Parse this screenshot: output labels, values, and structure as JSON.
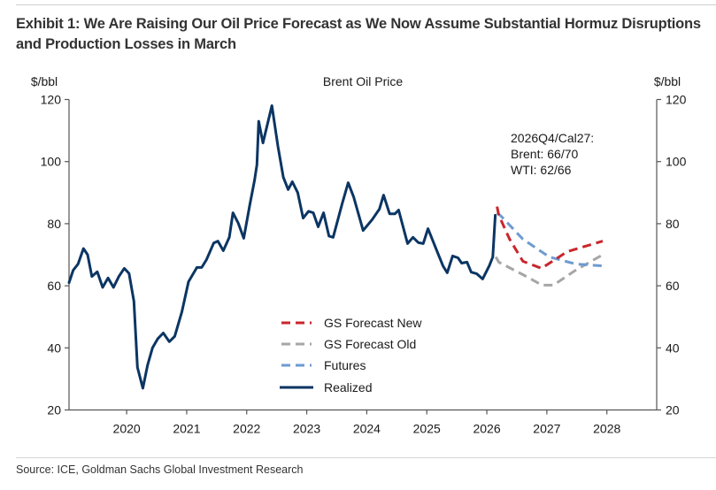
{
  "exhibit": {
    "title": "Exhibit 1: We Are Raising Our Oil Price Forecast as We Now Assume Substantial Hormuz Disruptions and Production Losses in March",
    "source": "Source: ICE, Goldman Sachs Global Investment Research"
  },
  "chart_data": {
    "type": "line",
    "title": "Brent Oil Price",
    "xlabel": "",
    "ylabel": "$/bbl",
    "ylabel_right": "$/bbl",
    "xlim": [
      2019.04,
      2028.83
    ],
    "ylim": [
      20,
      120
    ],
    "x_ticks": [
      2020,
      2021,
      2022,
      2023,
      2024,
      2025,
      2026,
      2027,
      2028
    ],
    "x_tick_labels": [
      "2020",
      "2021",
      "2022",
      "2023",
      "2024",
      "2025",
      "2026",
      "2027",
      "2028"
    ],
    "y_ticks": [
      20,
      40,
      60,
      80,
      100,
      120
    ],
    "y_tick_labels": [
      "20",
      "40",
      "60",
      "80",
      "100",
      "120"
    ],
    "grid": false,
    "legend_position": "bottom-center",
    "annotation": [
      "2026Q4/Cal27:",
      "Brent: 66/70",
      "WTI: 62/66"
    ],
    "series": [
      {
        "name": "GS Forecast New",
        "style": "dashed",
        "color": "#c8262c",
        "x": [
          2026.17,
          2026.2,
          2026.38,
          2026.6,
          2026.91,
          2027.34,
          2027.93
        ],
        "values": [
          85.5,
          82.7,
          75,
          67.9,
          65.6,
          71,
          74.4
        ]
      },
      {
        "name": "GS Forecast Old",
        "style": "dashed",
        "color": "#a6a6a6",
        "x": [
          2026.15,
          2026.2,
          2026.6,
          2026.92,
          2027.11,
          2027.48,
          2027.93
        ],
        "values": [
          69.3,
          67.6,
          63.6,
          60.2,
          60.2,
          65,
          70
        ]
      },
      {
        "name": "Futures",
        "style": "dashed",
        "color": "#6e9bd1",
        "x": [
          2026.17,
          2026.24,
          2026.6,
          2027.04,
          2027.48,
          2027.93
        ],
        "values": [
          83.5,
          82.4,
          75,
          69.3,
          67,
          66.4
        ]
      },
      {
        "name": "Realized",
        "style": "solid",
        "color": "#0b3563",
        "x": [
          2019.04,
          2019.11,
          2019.19,
          2019.28,
          2019.35,
          2019.42,
          2019.51,
          2019.6,
          2019.69,
          2019.78,
          2019.87,
          2019.96,
          2020.04,
          2020.12,
          2020.18,
          2020.27,
          2020.35,
          2020.43,
          2020.52,
          2020.61,
          2020.71,
          2020.8,
          2020.92,
          2021.03,
          2021.17,
          2021.25,
          2021.33,
          2021.45,
          2021.52,
          2021.61,
          2021.71,
          2021.77,
          2021.86,
          2021.95,
          2022.05,
          2022.13,
          2022.17,
          2022.2,
          2022.27,
          2022.42,
          2022.52,
          2022.61,
          2022.69,
          2022.76,
          2022.85,
          2022.94,
          2023.03,
          2023.11,
          2023.19,
          2023.28,
          2023.37,
          2023.44,
          2023.59,
          2023.69,
          2023.78,
          2023.94,
          2024.09,
          2024.21,
          2024.28,
          2024.38,
          2024.47,
          2024.53,
          2024.68,
          2024.77,
          2024.86,
          2024.94,
          2025.02,
          2025.15,
          2025.27,
          2025.34,
          2025.43,
          2025.52,
          2025.58,
          2025.67,
          2025.74,
          2025.83,
          2025.93,
          2026.04,
          2026.1,
          2026.14
        ],
        "values": [
          61,
          65,
          67,
          72,
          70,
          63,
          64.5,
          59.5,
          62.5,
          59.5,
          63,
          65.6,
          64,
          55,
          33.7,
          27,
          34.5,
          40,
          43,
          44.8,
          42,
          43.7,
          51.6,
          61.3,
          65.9,
          65.9,
          68.4,
          73.8,
          74.4,
          71.3,
          75.6,
          83.5,
          80.1,
          75.3,
          86,
          94,
          99,
          113,
          106,
          118,
          105,
          95,
          91,
          93.5,
          90,
          81.8,
          84,
          83.5,
          79,
          83.5,
          76,
          75.6,
          86.4,
          93.2,
          88.7,
          77.8,
          81.3,
          84.7,
          89.2,
          83.2,
          83.2,
          84.4,
          73.6,
          75.6,
          73.9,
          73.6,
          78.4,
          72.1,
          66.4,
          64.2,
          69.6,
          69,
          67.3,
          67.6,
          64.4,
          63.9,
          62.2,
          66.4,
          69.3,
          82.7
        ]
      }
    ]
  }
}
